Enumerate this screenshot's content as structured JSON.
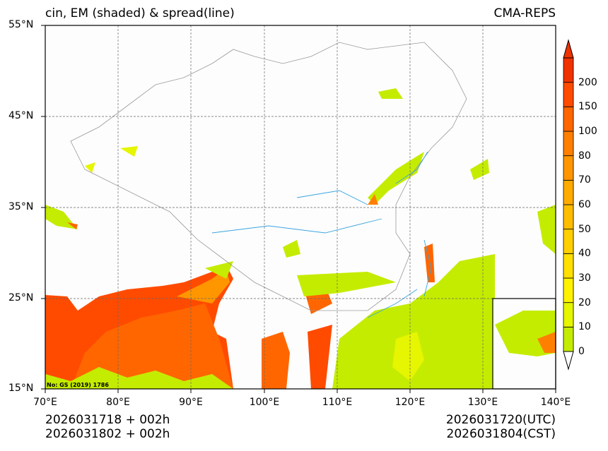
{
  "header": {
    "title": "cin, EM (shaded) & spread(line)",
    "source": "CMA-REPS"
  },
  "map": {
    "lon_range": [
      70,
      140
    ],
    "lat_range": [
      15,
      55
    ],
    "lat_ticks": [
      "55°N",
      "45°N",
      "35°N",
      "25°N",
      "15°N"
    ],
    "lon_ticks": [
      "70°E",
      "80°E",
      "90°E",
      "100°E",
      "110°E",
      "120°E",
      "130°E",
      "140°E"
    ],
    "approval_no": "No: GS (2019) 1786"
  },
  "colorbar": {
    "levels": [
      "0",
      "10",
      "20",
      "30",
      "40",
      "50",
      "60",
      "70",
      "80",
      "100",
      "150",
      "200"
    ],
    "colors": [
      "#c4ec00",
      "#e6f500",
      "#fff200",
      "#ffe000",
      "#ffcf00",
      "#ffbd00",
      "#ffab00",
      "#ff9600",
      "#ff8000",
      "#ff6600",
      "#ff4b00",
      "#f03200"
    ],
    "under_color": "#ffffff",
    "over_color": "#f03200"
  },
  "footer": {
    "init_utc": "2026031718  +  002h",
    "init_cst": "2026031802  +  002h",
    "valid_utc": "2026031720(UTC)",
    "valid_cst": "2026031804(CST)"
  }
}
